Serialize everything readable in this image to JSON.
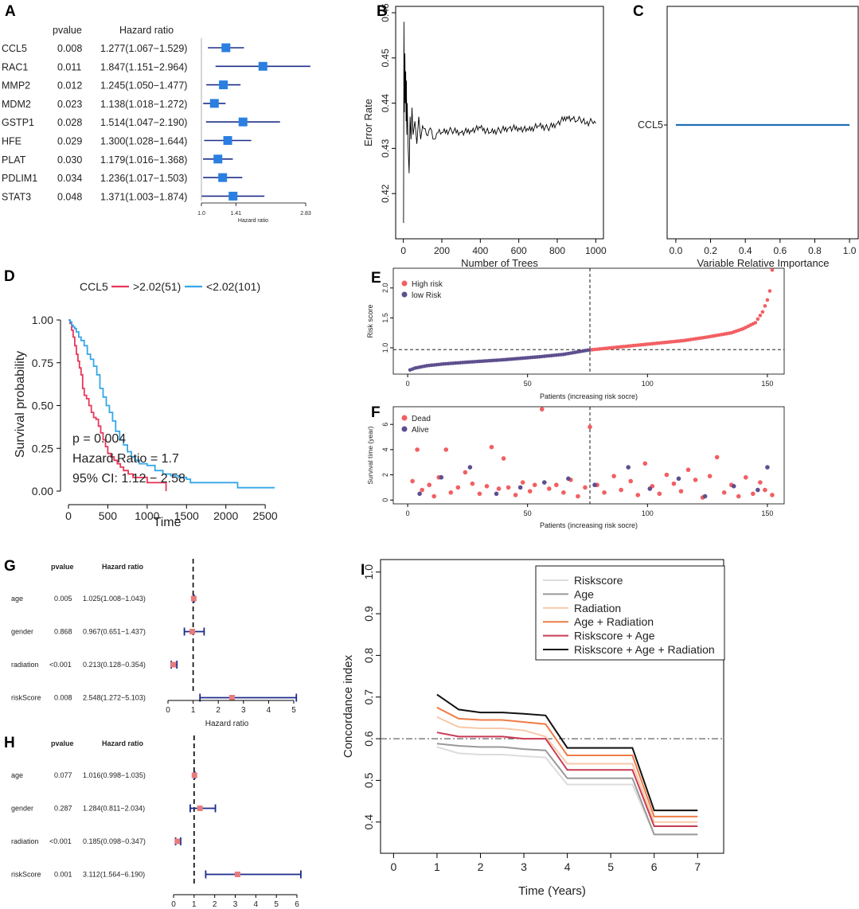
{
  "chart_data": [
    {
      "id": "A",
      "type": "forest",
      "panel_label": "A",
      "col_headers": {
        "pvalue": "pvalue",
        "hr": "Hazard ratio"
      },
      "xlabel": "Hazard ratio",
      "ticks": [
        1.0,
        1.41,
        2.83
      ],
      "tick_labels": [
        "1.0",
        "1.41",
        "2.83"
      ],
      "scale": "log",
      "rows": [
        {
          "name": "CCL5",
          "pvalue": "0.008",
          "hr_text": "1.277(1.067−1.529)",
          "hr": 1.277,
          "lo": 1.067,
          "hi": 1.529
        },
        {
          "name": "RAC1",
          "pvalue": "0.011",
          "hr_text": "1.847(1.151−2.964)",
          "hr": 1.847,
          "lo": 1.151,
          "hi": 2.964
        },
        {
          "name": "MMP2",
          "pvalue": "0.012",
          "hr_text": "1.245(1.050−1.477)",
          "hr": 1.245,
          "lo": 1.05,
          "hi": 1.477
        },
        {
          "name": "MDM2",
          "pvalue": "0.023",
          "hr_text": "1.138(1.018−1.272)",
          "hr": 1.138,
          "lo": 1.018,
          "hi": 1.272
        },
        {
          "name": "GSTP1",
          "pvalue": "0.028",
          "hr_text": "1.514(1.047−2.190)",
          "hr": 1.514,
          "lo": 1.047,
          "hi": 2.19
        },
        {
          "name": "HFE",
          "pvalue": "0.029",
          "hr_text": "1.300(1.028−1.644)",
          "hr": 1.3,
          "lo": 1.028,
          "hi": 1.644
        },
        {
          "name": "PLAT",
          "pvalue": "0.030",
          "hr_text": "1.179(1.016−1.368)",
          "hr": 1.179,
          "lo": 1.016,
          "hi": 1.368
        },
        {
          "name": "PDLIM1",
          "pvalue": "0.034",
          "hr_text": "1.236(1.017−1.503)",
          "hr": 1.236,
          "lo": 1.017,
          "hi": 1.503
        },
        {
          "name": "STAT3",
          "pvalue": "0.048",
          "hr_text": "1.371(1.003−1.874)",
          "hr": 1.371,
          "lo": 1.003,
          "hi": 1.874
        }
      ]
    },
    {
      "id": "B",
      "type": "line",
      "panel_label": "B",
      "xlabel": "Number of Trees",
      "ylabel": "Error Rate",
      "xlim": [
        0,
        1000
      ],
      "ylim": [
        0.413,
        0.46
      ],
      "xticks": [
        0,
        200,
        400,
        600,
        800,
        1000
      ],
      "yticks": [
        0.42,
        0.43,
        0.44,
        0.45,
        0.46
      ],
      "ytick_labels": [
        "0.42",
        "0.43",
        "0.44",
        "0.45",
        "0.46"
      ],
      "series": [
        {
          "name": "OOB error",
          "x": [
            1,
            3,
            5,
            8,
            10,
            12,
            14,
            16,
            18,
            20,
            25,
            30,
            35,
            40,
            45,
            50,
            60,
            70,
            80,
            90,
            100,
            120,
            140,
            160,
            180,
            200,
            250,
            300,
            350,
            400,
            450,
            500,
            550,
            600,
            650,
            700,
            750,
            800,
            850,
            880,
            900,
            920,
            950,
            980,
            1000
          ],
          "y": [
            0.4135,
            0.458,
            0.438,
            0.451,
            0.44,
            0.447,
            0.436,
            0.445,
            0.433,
            0.44,
            0.43,
            0.4245,
            0.437,
            0.432,
            0.439,
            0.433,
            0.436,
            0.431,
            0.437,
            0.432,
            0.435,
            0.433,
            0.4345,
            0.432,
            0.4335,
            0.4335,
            0.434,
            0.4335,
            0.434,
            0.4345,
            0.4335,
            0.434,
            0.4345,
            0.4345,
            0.434,
            0.435,
            0.4345,
            0.4355,
            0.437,
            0.4365,
            0.436,
            0.4365,
            0.4355,
            0.436,
            0.4355
          ]
        }
      ]
    },
    {
      "id": "C",
      "type": "bar",
      "panel_label": "C",
      "orientation": "horizontal",
      "xlabel": "Variable Relative Importance",
      "categories": [
        "CCL5"
      ],
      "values": [
        1.0
      ],
      "xlim": [
        0,
        1
      ],
      "xticks": [
        0.0,
        0.2,
        0.4,
        0.6,
        0.8,
        1.0
      ],
      "xtick_labels": [
        "0.0",
        "0.2",
        "0.4",
        "0.6",
        "0.8",
        "1.0"
      ],
      "color": "#1f6fb5"
    },
    {
      "id": "D",
      "type": "line",
      "panel_label": "D",
      "title": "CCL5",
      "xlabel": "Time",
      "ylabel": "Survival probability",
      "xlim": [
        0,
        2620
      ],
      "ylim": [
        0,
        1.0
      ],
      "xticks": [
        0,
        500,
        1000,
        1500,
        2000,
        2500
      ],
      "yticks": [
        0.0,
        0.25,
        0.5,
        0.75,
        1.0
      ],
      "ytick_labels": [
        "0.00",
        "0.25",
        "0.50",
        "0.75",
        "1.00"
      ],
      "annotations": [
        "p = 0.004",
        "Hazard Ratio = 1.7",
        "95% CI: 1.12 − 2.58"
      ],
      "series": [
        {
          "name": ">2.02(51)",
          "color": "#e8375a",
          "x": [
            0,
            20,
            40,
            60,
            80,
            100,
            120,
            140,
            160,
            180,
            200,
            230,
            260,
            290,
            320,
            350,
            380,
            410,
            440,
            470,
            500,
            540,
            580,
            620,
            660,
            700,
            760,
            820,
            880,
            940,
            1000,
            1100,
            1200,
            1240
          ],
          "y": [
            1.0,
            0.98,
            0.94,
            0.9,
            0.85,
            0.8,
            0.76,
            0.72,
            0.68,
            0.6,
            0.56,
            0.54,
            0.5,
            0.46,
            0.43,
            0.42,
            0.38,
            0.34,
            0.3,
            0.26,
            0.22,
            0.2,
            0.18,
            0.16,
            0.14,
            0.12,
            0.1,
            0.08,
            0.08,
            0.08,
            0.05,
            0.05,
            0.05,
            0.05
          ]
        },
        {
          "name": "<2.02(101)",
          "color": "#35a7e8",
          "x": [
            0,
            20,
            40,
            60,
            80,
            100,
            130,
            160,
            200,
            240,
            280,
            320,
            360,
            400,
            440,
            480,
            520,
            560,
            600,
            650,
            700,
            750,
            800,
            850,
            900,
            1000,
            1100,
            1200,
            1300,
            1400,
            1500,
            1550,
            1700,
            1900,
            2100,
            2150,
            2400,
            2620
          ],
          "y": [
            1.0,
            0.99,
            0.97,
            0.96,
            0.95,
            0.93,
            0.9,
            0.88,
            0.85,
            0.8,
            0.77,
            0.73,
            0.68,
            0.6,
            0.55,
            0.5,
            0.46,
            0.41,
            0.35,
            0.3,
            0.27,
            0.23,
            0.2,
            0.18,
            0.16,
            0.15,
            0.12,
            0.1,
            0.09,
            0.08,
            0.07,
            0.05,
            0.05,
            0.05,
            0.05,
            0.02,
            0.02,
            0.02
          ]
        }
      ]
    },
    {
      "id": "E",
      "type": "scatter",
      "panel_label": "E",
      "xlabel": "Patients (increasing risk socre)",
      "ylabel": "Risk score",
      "xlim": [
        -6,
        157
      ],
      "ylim": [
        0.56,
        2.33
      ],
      "xticks": [
        0,
        50,
        100,
        150
      ],
      "yticks": [
        1.0,
        1.5,
        2.0
      ],
      "ytick_labels": [
        "1.0",
        "1.5",
        "2.0"
      ],
      "cutoff_x": 76,
      "cutoff_y": 0.97,
      "n": 152,
      "legend": [
        {
          "label": "High risk",
          "color": "#f25f62"
        },
        {
          "label": "low Risk",
          "color": "#5e4f8f"
        }
      ],
      "key_points": {
        "x": [
          1,
          3,
          8,
          15,
          25,
          40,
          55,
          65,
          75,
          85,
          100,
          115,
          125,
          135,
          140,
          145,
          148,
          150,
          151,
          152
        ],
        "y": [
          0.63,
          0.66,
          0.7,
          0.73,
          0.76,
          0.8,
          0.85,
          0.89,
          0.96,
          1.0,
          1.06,
          1.12,
          1.18,
          1.25,
          1.32,
          1.42,
          1.6,
          1.8,
          1.95,
          2.3
        ]
      }
    },
    {
      "id": "F",
      "type": "scatter",
      "panel_label": "F",
      "xlabel": "Patients (increasing risk socre)",
      "ylabel": "Survival time (year)",
      "xlim": [
        -6,
        157
      ],
      "ylim": [
        -0.3,
        7.4
      ],
      "xticks": [
        0,
        50,
        100,
        150
      ],
      "yticks": [
        0,
        2,
        4,
        6
      ],
      "ytick_labels": [
        "0",
        "2",
        "4",
        "6"
      ],
      "cutoff_x": 76,
      "legend": [
        {
          "label": "Dead",
          "color": "#f25f62"
        },
        {
          "label": "Alive",
          "color": "#5e4f8f"
        }
      ],
      "dead_x": [
        2,
        4,
        6,
        9,
        11,
        13,
        16,
        18,
        21,
        24,
        27,
        30,
        33,
        35,
        38,
        40,
        42,
        45,
        48,
        51,
        53,
        56,
        59,
        62,
        65,
        68,
        71,
        74,
        76,
        79,
        82,
        86,
        89,
        93,
        96,
        99,
        102,
        105,
        108,
        111,
        114,
        117,
        120,
        123,
        126,
        129,
        132,
        135,
        138,
        141,
        144,
        147,
        149,
        152
      ],
      "dead_y": [
        1.5,
        4.0,
        0.8,
        1.2,
        0.3,
        1.8,
        4.0,
        0.6,
        1.0,
        2.2,
        1.3,
        0.5,
        1.1,
        4.2,
        0.9,
        3.3,
        1.0,
        0.4,
        1.4,
        0.7,
        1.2,
        7.2,
        0.9,
        1.2,
        0.6,
        1.6,
        0.3,
        1.0,
        5.8,
        1.2,
        0.6,
        1.9,
        0.8,
        1.5,
        0.4,
        2.9,
        1.1,
        0.5,
        2.0,
        1.3,
        0.7,
        2.4,
        1.6,
        0.2,
        1.9,
        3.4,
        0.6,
        1.2,
        0.3,
        1.8,
        0.5,
        1.4,
        0.8,
        0.4
      ],
      "alive_x": [
        5,
        14,
        26,
        37,
        47,
        57,
        67,
        78,
        92,
        101,
        113,
        124,
        136,
        146,
        150
      ],
      "alive_y": [
        0.5,
        1.8,
        2.6,
        0.5,
        1.0,
        1.4,
        1.7,
        1.2,
        2.6,
        0.9,
        1.7,
        0.3,
        1.1,
        0.8,
        2.6
      ]
    },
    {
      "id": "G",
      "type": "forest",
      "panel_label": "G",
      "col_headers": {
        "pvalue": "pvalue",
        "hr": "Hazard ratio"
      },
      "xlabel": "Hazard ratio",
      "scale": "linear",
      "ticks": [
        0,
        1,
        2,
        3,
        4,
        5
      ],
      "tick_labels": [
        "0",
        "1",
        "2",
        "3",
        "4",
        "5"
      ],
      "rows": [
        {
          "name": "age",
          "pvalue": "0.005",
          "hr_text": "1.025(1.008−1.043)",
          "hr": 1.025,
          "lo": 1.008,
          "hi": 1.043
        },
        {
          "name": "gender",
          "pvalue": "0.868",
          "hr_text": "0.967(0.651−1.437)",
          "hr": 0.967,
          "lo": 0.651,
          "hi": 1.437
        },
        {
          "name": "radiation",
          "pvalue": "<0.001",
          "hr_text": "0.213(0.128−0.354)",
          "hr": 0.213,
          "lo": 0.128,
          "hi": 0.354
        },
        {
          "name": "riskScore",
          "pvalue": "0.008",
          "hr_text": "2.548(1.272−5.103)",
          "hr": 2.548,
          "lo": 1.272,
          "hi": 5.103
        }
      ]
    },
    {
      "id": "H",
      "type": "forest",
      "panel_label": "H",
      "col_headers": {
        "pvalue": "pvalue",
        "hr": "Hazard ratio"
      },
      "xlabel": "Hazard ratio",
      "scale": "linear",
      "ticks": [
        0,
        1,
        2,
        3,
        4,
        5,
        6
      ],
      "tick_labels": [
        "0",
        "1",
        "2",
        "3",
        "4",
        "5",
        "6"
      ],
      "rows": [
        {
          "name": "age",
          "pvalue": "0.077",
          "hr_text": "1.016(0.998−1.035)",
          "hr": 1.016,
          "lo": 0.998,
          "hi": 1.035
        },
        {
          "name": "gender",
          "pvalue": "0.287",
          "hr_text": "1.284(0.811−2.034)",
          "hr": 1.284,
          "lo": 0.811,
          "hi": 2.034
        },
        {
          "name": "radiation",
          "pvalue": "<0.001",
          "hr_text": "0.185(0.098−0.347)",
          "hr": 0.185,
          "lo": 0.098,
          "hi": 0.347
        },
        {
          "name": "riskScore",
          "pvalue": "0.001",
          "hr_text": "3.112(1.564−6.190)",
          "hr": 3.112,
          "lo": 1.564,
          "hi": 6.19
        }
      ]
    },
    {
      "id": "I",
      "type": "line",
      "panel_label": "I",
      "xlabel": "Time (Years)",
      "ylabel": "Concordance index",
      "xlim": [
        -0.3,
        7.6
      ],
      "ylim": [
        0.325,
        1.03
      ],
      "xticks": [
        0,
        1,
        2,
        3,
        4,
        5,
        6,
        7
      ],
      "yticks": [
        0.4,
        0.5,
        0.6,
        0.7,
        0.8,
        0.9,
        1.0
      ],
      "ytick_labels": [
        "0.4",
        "0.5",
        "0.6",
        "0.7",
        "0.8",
        "0.9",
        "1.0"
      ],
      "reference_y": 0.6,
      "step_x": [
        1,
        1.5,
        2,
        2.5,
        3,
        3.5,
        4,
        4.5,
        5,
        5.5,
        6,
        6.5,
        7
      ],
      "series": [
        {
          "name": "Riskscore",
          "color": "#dcdcdc",
          "values": [
            0.58,
            0.565,
            0.562,
            0.562,
            0.558,
            0.555,
            0.49,
            0.49,
            0.49,
            0.49,
            0.37,
            0.37,
            0.37
          ]
        },
        {
          "name": "Age",
          "color": "#9a9a9a",
          "values": [
            0.588,
            0.583,
            0.58,
            0.58,
            0.575,
            0.572,
            0.505,
            0.505,
            0.505,
            0.505,
            0.37,
            0.37,
            0.37
          ]
        },
        {
          "name": "Radiation",
          "color": "#f7c9a8",
          "values": [
            0.652,
            0.628,
            0.625,
            0.625,
            0.62,
            0.605,
            0.54,
            0.54,
            0.54,
            0.54,
            0.4,
            0.4,
            0.4
          ]
        },
        {
          "name": "Age + Radiation",
          "color": "#ee7c46",
          "values": [
            0.675,
            0.648,
            0.645,
            0.645,
            0.64,
            0.635,
            0.56,
            0.56,
            0.56,
            0.56,
            0.413,
            0.413,
            0.413
          ]
        },
        {
          "name": "Riskscore + Age",
          "color": "#c93a55",
          "values": [
            0.615,
            0.605,
            0.605,
            0.605,
            0.6,
            0.6,
            0.525,
            0.525,
            0.525,
            0.525,
            0.39,
            0.39,
            0.39
          ]
        },
        {
          "name": "Riskscore + Age + Radiation",
          "color": "#111111",
          "values": [
            0.706,
            0.67,
            0.663,
            0.663,
            0.66,
            0.656,
            0.578,
            0.578,
            0.578,
            0.578,
            0.428,
            0.428,
            0.428
          ]
        }
      ]
    }
  ]
}
